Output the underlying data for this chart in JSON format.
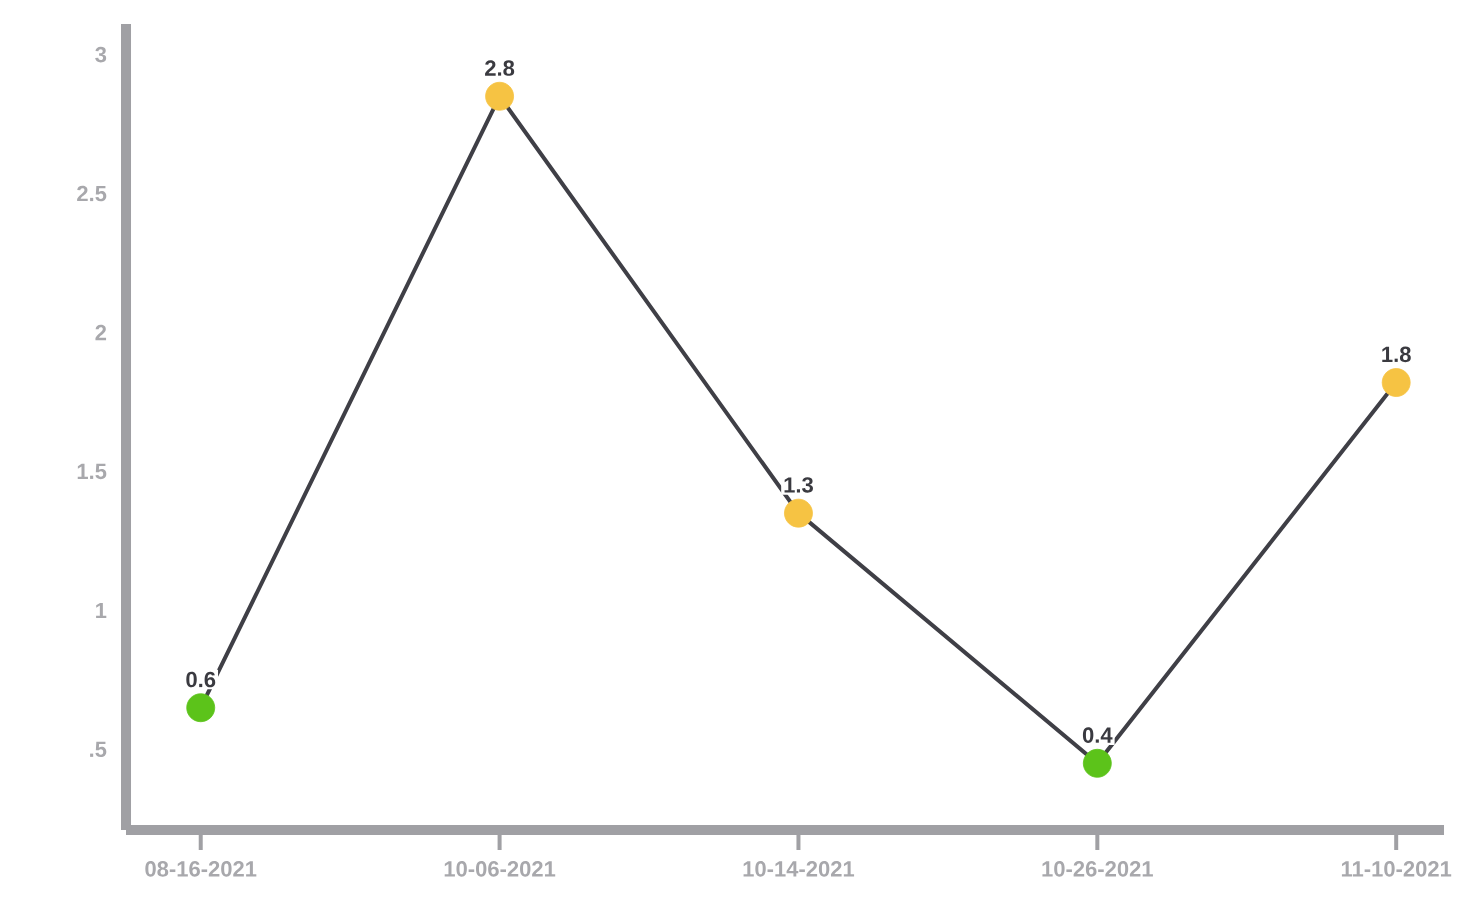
{
  "chart_data": {
    "type": "line",
    "categories": [
      "08-16-2021",
      "10-06-2021",
      "10-14-2021",
      "10-26-2021",
      "11-10-2021"
    ],
    "series": [
      {
        "color": "#3f3f46",
        "colors": [
          "#5cc31a",
          "#f6c343",
          "#f6c343",
          "#5cc31a",
          "#f6c343"
        ],
        "values": [
          0.65,
          2.85,
          1.35,
          0.45,
          1.82
        ],
        "value_labels": [
          "0.6",
          "2.8",
          "1.3",
          "0.4",
          "1.8"
        ]
      }
    ],
    "ylim": [
      0.21,
      3.11
    ],
    "yticks": [
      {
        "value": 0.5,
        "label": ".5"
      },
      1,
      1.5,
      2,
      2.5,
      3
    ],
    "marker": "circle",
    "grid": false
  }
}
